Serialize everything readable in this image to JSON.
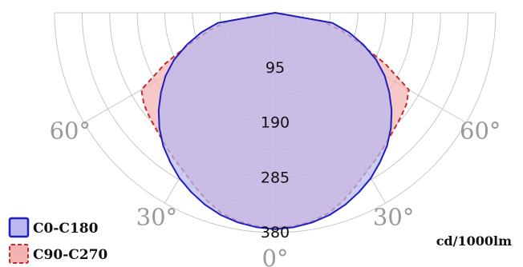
{
  "chart_data": {
    "type": "polar",
    "unit": "cd/1000lm",
    "radial_ticks": [
      95,
      190,
      285,
      380
    ],
    "angle_ticks": [
      {
        "angle": -60,
        "label": "60°"
      },
      {
        "angle": -30,
        "label": "30°"
      },
      {
        "angle": 0,
        "label": "0°"
      },
      {
        "angle": 30,
        "label": "30°"
      },
      {
        "angle": 60,
        "label": "60°"
      }
    ],
    "angle_range": [
      -90,
      90
    ],
    "r_max": 380,
    "legend_placement": "bottom-left",
    "series": [
      {
        "name": "C0-C180",
        "color": "#1f1fbf",
        "fill": "#b9b9f0",
        "style": "solid",
        "points": [
          [
            -90,
            0
          ],
          [
            -80,
            100
          ],
          [
            -75,
            132
          ],
          [
            -70,
            162
          ],
          [
            -65,
            192
          ],
          [
            -60,
            218
          ],
          [
            -55,
            240
          ],
          [
            -50,
            262
          ],
          [
            -45,
            282
          ],
          [
            -40,
            300
          ],
          [
            -35,
            315
          ],
          [
            -30,
            330
          ],
          [
            -25,
            342
          ],
          [
            -20,
            353
          ],
          [
            -15,
            362
          ],
          [
            -10,
            368
          ],
          [
            -5,
            372
          ],
          [
            0,
            374
          ],
          [
            5,
            372
          ],
          [
            10,
            368
          ],
          [
            15,
            362
          ],
          [
            20,
            353
          ],
          [
            25,
            342
          ],
          [
            30,
            330
          ],
          [
            35,
            315
          ],
          [
            40,
            300
          ],
          [
            45,
            282
          ],
          [
            50,
            262
          ],
          [
            55,
            240
          ],
          [
            60,
            218
          ],
          [
            65,
            192
          ],
          [
            70,
            162
          ],
          [
            75,
            132
          ],
          [
            80,
            100
          ],
          [
            90,
            0
          ]
        ]
      },
      {
        "name": "C90-C270",
        "color": "#c42b2b",
        "fill": "#f3b3b3",
        "style": "dashed",
        "points": [
          [
            -90,
            0
          ],
          [
            -80,
            82
          ],
          [
            -75,
            118
          ],
          [
            -70,
            156
          ],
          [
            -65,
            210
          ],
          [
            -60,
            266
          ],
          [
            -55,
            276
          ],
          [
            -50,
            282
          ],
          [
            -45,
            288
          ],
          [
            -40,
            296
          ],
          [
            -35,
            306
          ],
          [
            -30,
            316
          ],
          [
            -25,
            330
          ],
          [
            -20,
            345
          ],
          [
            -15,
            358
          ],
          [
            -10,
            366
          ],
          [
            -5,
            370
          ],
          [
            0,
            372
          ],
          [
            5,
            370
          ],
          [
            10,
            366
          ],
          [
            15,
            358
          ],
          [
            20,
            345
          ],
          [
            25,
            330
          ],
          [
            30,
            316
          ],
          [
            35,
            306
          ],
          [
            40,
            296
          ],
          [
            45,
            288
          ],
          [
            50,
            282
          ],
          [
            55,
            276
          ],
          [
            60,
            266
          ],
          [
            65,
            210
          ],
          [
            70,
            156
          ],
          [
            75,
            118
          ],
          [
            80,
            82
          ],
          [
            90,
            0
          ]
        ]
      }
    ]
  }
}
